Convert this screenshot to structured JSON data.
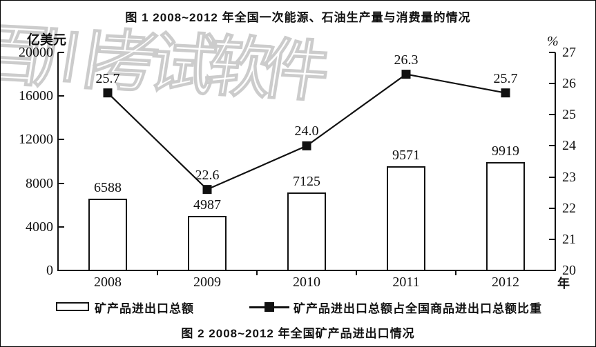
{
  "figure_title_top": "图 1  2008~2012 年全国一次能源、石油生产量与消费量的情况",
  "figure_caption_bottom": "图 2  2008~2012 年全国矿产品进出口情况",
  "watermark_text": "百川考试软件",
  "axes": {
    "left_unit": "亿美元",
    "right_unit": "%",
    "x_unit": "年"
  },
  "legend": {
    "bar_label": "矿产品进出口总额",
    "line_label": "矿产品进出口总额占全国商品进出口总额比重"
  },
  "colors": {
    "stroke": "#111111",
    "bar_fill": "#ffffff",
    "watermark_outline": "#cccccc"
  },
  "chart_data": {
    "type": "bar+line combo",
    "title": "图 2 2008~2012 年全国矿产品进出口情况",
    "categories": [
      "2008",
      "2009",
      "2010",
      "2011",
      "2012"
    ],
    "series": [
      {
        "name": "矿产品进出口总额",
        "type": "bar",
        "axis": "left",
        "values": [
          6588,
          4987,
          7125,
          9571,
          9919
        ],
        "labels": [
          "6588",
          "4987",
          "7125",
          "9571",
          "9919"
        ]
      },
      {
        "name": "矿产品进出口总额占全国商品进出口总额比重",
        "type": "line",
        "axis": "right",
        "values": [
          25.7,
          22.6,
          24.0,
          26.3,
          25.7
        ],
        "labels": [
          "25.7",
          "22.6",
          "24.0",
          "26.3",
          "25.7"
        ]
      }
    ],
    "left_axis": {
      "unit": "亿美元",
      "min": 0,
      "max": 20000,
      "ticks": [
        0,
        4000,
        8000,
        12000,
        16000,
        20000
      ]
    },
    "right_axis": {
      "unit": "%",
      "min": 20,
      "max": 27,
      "ticks": [
        20,
        21,
        22,
        23,
        24,
        25,
        26,
        27
      ]
    },
    "x_axis_unit": "年",
    "grid": false,
    "legend_position": "bottom"
  }
}
